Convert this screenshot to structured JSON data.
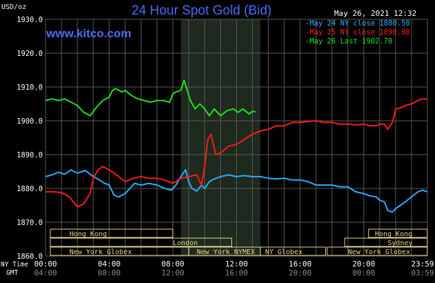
{
  "chart_data": {
    "type": "line",
    "title": "24 Hour Spot Gold (Bid)",
    "site": "www.kitco.com",
    "timestamp": "May 26, 2021 12:32",
    "ylabel": "USD/oz",
    "ylim": [
      1860,
      1930
    ],
    "yticks": [
      "1930.0",
      "1920.0",
      "1910.0",
      "1900.0",
      "1890.0",
      "1880.0",
      "1870.0",
      "1860.0"
    ],
    "x_hours": [
      0,
      4,
      8,
      12,
      16,
      20,
      24
    ],
    "ny_time_label": "NY Time",
    "gmt_label": "GMT",
    "ny_ticks": [
      "00:00",
      "04:00",
      "08:00",
      "12:00",
      "16:00",
      "20:00",
      "23:59"
    ],
    "gmt_ticks": [
      "04:00",
      "08:00",
      "12:00",
      "16:00",
      "20:00",
      "00:00",
      "03:59"
    ],
    "shaded_hours": [
      8.5,
      13.5
    ],
    "grid": true,
    "colors": {
      "background": "#000000",
      "grid": "#5a5a5a",
      "title": "#4d6cf5",
      "site": "#4d6cf5",
      "axis_text": "#ffffff",
      "shade": "#1e2a1e",
      "session_box": "#e8d68c"
    },
    "series": [
      {
        "name": "May 24 NY close 1880.50",
        "color": "#2ab0ff",
        "x": [
          0,
          0.4,
          0.8,
          1.2,
          1.6,
          2.0,
          2.5,
          3.0,
          3.4,
          3.7,
          4.0,
          4.3,
          4.6,
          5.0,
          5.3,
          5.6,
          6.0,
          6.5,
          7.0,
          7.5,
          7.9,
          8.2,
          8.5,
          8.8,
          9.0,
          9.2,
          9.5,
          9.8,
          10.0,
          10.3,
          10.6,
          11.0,
          11.5,
          12.0,
          12.5,
          13.0,
          13.5,
          14.0,
          14.5,
          15.0,
          15.5,
          16.0,
          16.5,
          17.0,
          17.5,
          18.0,
          18.5,
          19.0,
          19.5,
          20.0,
          20.4,
          20.8,
          21.0,
          21.3,
          21.5,
          21.8,
          22.0,
          22.3,
          22.6,
          23.0,
          23.4,
          23.7,
          23.99
        ],
        "values": [
          1883.5,
          1884.0,
          1884.8,
          1884.2,
          1885.5,
          1884.5,
          1885.3,
          1883.5,
          1882.5,
          1881.5,
          1881.0,
          1878.0,
          1877.5,
          1878.5,
          1880.0,
          1881.5,
          1881.0,
          1881.5,
          1881.0,
          1880.0,
          1879.5,
          1881.0,
          1883.5,
          1885.5,
          1882.0,
          1880.0,
          1879.2,
          1881.0,
          1880.0,
          1882.0,
          1882.8,
          1883.5,
          1884.0,
          1883.5,
          1883.8,
          1883.5,
          1883.5,
          1883.0,
          1882.8,
          1883.0,
          1882.5,
          1882.5,
          1882.0,
          1881.0,
          1881.0,
          1881.0,
          1880.5,
          1880.5,
          1879.0,
          1878.5,
          1877.8,
          1877.5,
          1876.5,
          1876.0,
          1873.5,
          1873.0,
          1874.0,
          1875.0,
          1876.0,
          1877.5,
          1879.0,
          1879.5,
          1879.0
        ]
      },
      {
        "name": "May 25 NY close 1890.80",
        "color": "#ff1a1a",
        "x": [
          0,
          0.5,
          1.0,
          1.5,
          2.0,
          2.4,
          2.8,
          3.0,
          3.3,
          3.6,
          4.0,
          4.3,
          4.6,
          5.0,
          5.5,
          6.0,
          6.5,
          7.0,
          7.5,
          8.0,
          8.5,
          9.0,
          9.5,
          9.8,
          10.0,
          10.2,
          10.4,
          10.7,
          11.0,
          11.5,
          12.0,
          12.5,
          13.0,
          13.5,
          14.0,
          14.5,
          15.0,
          15.5,
          16.0,
          16.5,
          17.0,
          17.5,
          18.0,
          18.5,
          19.0,
          19.5,
          20.0,
          20.4,
          20.8,
          21.0,
          21.3,
          21.5,
          21.8,
          22.0,
          22.3,
          22.6,
          23.0,
          23.4,
          23.7,
          23.99
        ],
        "values": [
          1879.0,
          1879.0,
          1878.8,
          1877.5,
          1874.5,
          1875.5,
          1878.5,
          1883.0,
          1885.5,
          1886.5,
          1885.5,
          1884.5,
          1883.5,
          1882.0,
          1883.0,
          1883.5,
          1883.0,
          1883.0,
          1882.5,
          1881.5,
          1883.0,
          1883.5,
          1884.0,
          1881.0,
          1886.5,
          1894.5,
          1896.0,
          1890.0,
          1890.5,
          1892.5,
          1893.0,
          1894.5,
          1896.0,
          1897.0,
          1897.5,
          1898.5,
          1898.5,
          1899.5,
          1899.5,
          1899.8,
          1900.0,
          1899.5,
          1899.5,
          1899.0,
          1899.0,
          1898.8,
          1899.0,
          1898.5,
          1898.5,
          1899.0,
          1899.0,
          1897.5,
          1899.5,
          1903.5,
          1903.8,
          1904.5,
          1905.0,
          1906.0,
          1906.5,
          1906.5
        ]
      },
      {
        "name": "May 26 Last 1902.70",
        "color": "#22e022",
        "x": [
          0,
          0.4,
          0.8,
          1.2,
          1.6,
          2.0,
          2.4,
          2.8,
          3.2,
          3.6,
          4.0,
          4.2,
          4.4,
          4.8,
          5.0,
          5.4,
          5.8,
          6.2,
          6.6,
          7.0,
          7.4,
          7.8,
          8.0,
          8.2,
          8.5,
          8.7,
          8.9,
          9.1,
          9.4,
          9.7,
          10.0,
          10.3,
          10.6,
          11.0,
          11.4,
          11.8,
          12.1,
          12.4,
          12.8,
          13.0,
          13.2
        ],
        "values": [
          1906.0,
          1906.5,
          1906.0,
          1906.5,
          1905.5,
          1904.5,
          1902.5,
          1901.5,
          1904.0,
          1906.0,
          1907.0,
          1909.0,
          1909.5,
          1908.5,
          1909.0,
          1907.5,
          1906.5,
          1906.0,
          1905.5,
          1906.0,
          1906.0,
          1905.5,
          1908.0,
          1908.5,
          1909.0,
          1912.0,
          1909.0,
          1906.0,
          1903.5,
          1905.0,
          1903.5,
          1901.5,
          1903.5,
          1901.5,
          1903.0,
          1903.5,
          1902.5,
          1903.5,
          1902.0,
          1902.8,
          1902.7
        ]
      }
    ],
    "sessions": [
      {
        "label": "Hong Kong",
        "start": 0.3,
        "end": 8.0,
        "row": 1,
        "text_at": 1.5
      },
      {
        "label": "London",
        "start": 0.3,
        "end": 11.7,
        "row": 2,
        "text_at": 8.0
      },
      {
        "label": "New York Globex",
        "start": 0.3,
        "end": 9.0,
        "row": 3,
        "text_at": 1.5
      },
      {
        "label": "New York NYMEX",
        "start": 9.0,
        "end": 13.5,
        "row": 3,
        "text_at": 9.5
      },
      {
        "label": "NY Globex",
        "start": 13.5,
        "end": 17.6,
        "row": 3,
        "text_at": 13.8
      },
      {
        "label": "Hong Kong",
        "start": 20.3,
        "end": 23.99,
        "row": 1,
        "text_at": 20.7
      },
      {
        "label": "Sydney",
        "start": 18.8,
        "end": 23.99,
        "row": 2,
        "text_at": 21.5
      },
      {
        "label": "New York Globex",
        "start": 17.7,
        "end": 23.99,
        "row": 3,
        "text_at": 19.0
      }
    ]
  }
}
